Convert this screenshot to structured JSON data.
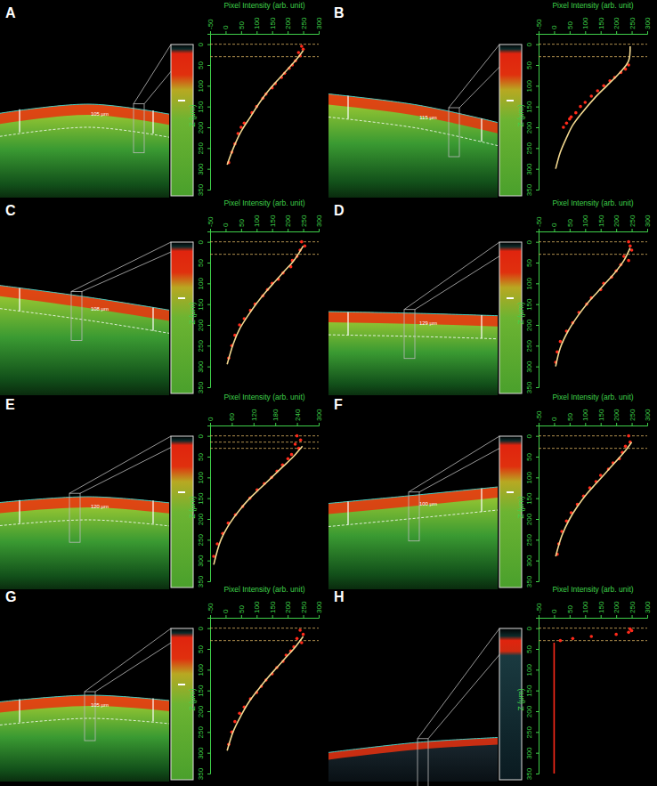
{
  "chart_data": [
    {
      "type": "scatter",
      "title": "A",
      "image_annotation": "105 µm",
      "x_label": "Pixel Intensity (arb. unit)",
      "y_label": "Z (μm)",
      "xlim": [
        -50,
        300
      ],
      "xticks": [
        -50,
        0,
        50,
        100,
        150,
        200,
        250,
        300
      ],
      "ylim": [
        -25,
        350
      ],
      "yticks": [
        0,
        50,
        100,
        150,
        200,
        250,
        300,
        350
      ],
      "reference_lines": [
        0,
        30
      ],
      "series": [
        {
          "type": "scatter",
          "color": "#ff2a1a",
          "marker": "circle",
          "x": [
            245,
            250,
            235,
            240,
            225,
            215,
            205,
            190,
            180,
            160,
            150,
            130,
            120,
            100,
            85,
            60,
            50,
            40,
            30,
            20,
            10
          ],
          "values": [
            5,
            12,
            20,
            28,
            40,
            50,
            58,
            70,
            80,
            95,
            105,
            120,
            130,
            150,
            165,
            190,
            200,
            215,
            240,
            260,
            285
          ]
        },
        {
          "type": "line",
          "color": "#f2d890",
          "line_style": "solid",
          "x": [
            250,
            230,
            200,
            170,
            140,
            110,
            80,
            50,
            25,
            5
          ],
          "values": [
            15,
            35,
            60,
            85,
            110,
            140,
            175,
            210,
            250,
            290
          ]
        }
      ]
    },
    {
      "type": "scatter",
      "title": "B",
      "image_annotation": "115 µm",
      "x_label": "Pixel Intensity (arb. unit)",
      "y_label": "Z (μm)",
      "xlim": [
        -50,
        300
      ],
      "xticks": [
        -50,
        0,
        50,
        100,
        150,
        200,
        250,
        300
      ],
      "ylim": [
        -25,
        350
      ],
      "yticks": [
        0,
        50,
        100,
        150,
        200,
        250,
        300,
        350
      ],
      "reference_lines": [
        0,
        30
      ],
      "series": [
        {
          "type": "scatter",
          "color": "#ff2a1a",
          "marker": "circle",
          "x": [
            240,
            230,
            215,
            195,
            180,
            160,
            140,
            120,
            100,
            85,
            70,
            55,
            50,
            40,
            30
          ],
          "values": [
            50,
            60,
            68,
            80,
            88,
            100,
            112,
            125,
            140,
            150,
            165,
            175,
            180,
            190,
            200
          ]
        },
        {
          "type": "line",
          "color": "#f2d890",
          "line_style": "solid",
          "x": [
            245,
            240,
            210,
            170,
            130,
            90,
            60,
            40,
            20,
            5
          ],
          "values": [
            5,
            40,
            70,
            100,
            130,
            165,
            195,
            225,
            260,
            300
          ]
        }
      ]
    },
    {
      "type": "scatter",
      "title": "C",
      "image_annotation": "108 µm",
      "x_label": "Pixel Intensity (arb. unit)",
      "y_label": "Z (μm)",
      "xlim": [
        -50,
        300
      ],
      "xticks": [
        -50,
        0,
        50,
        100,
        150,
        200,
        250,
        300
      ],
      "ylim": [
        -25,
        350
      ],
      "yticks": [
        0,
        50,
        100,
        150,
        200,
        250,
        300,
        350
      ],
      "reference_lines": [
        0,
        30
      ],
      "series": [
        {
          "type": "scatter",
          "color": "#ff2a1a",
          "marker": "circle",
          "x": [
            245,
            255,
            240,
            230,
            215,
            210,
            185,
            170,
            150,
            135,
            120,
            95,
            80,
            60,
            45,
            30,
            20,
            10
          ],
          "values": [
            0,
            10,
            20,
            35,
            45,
            60,
            75,
            90,
            100,
            115,
            130,
            150,
            165,
            185,
            200,
            225,
            250,
            280
          ]
        },
        {
          "type": "line",
          "color": "#f2d890",
          "line_style": "solid",
          "x": [
            250,
            220,
            190,
            160,
            130,
            100,
            70,
            45,
            25,
            5
          ],
          "values": [
            10,
            45,
            70,
            95,
            120,
            148,
            180,
            210,
            245,
            295
          ]
        }
      ]
    },
    {
      "type": "scatter",
      "title": "D",
      "image_annotation": "129 µm",
      "x_label": "Pixel Intensity (arb. unit)",
      "y_label": "Z (μm)",
      "xlim": [
        -50,
        300
      ],
      "xticks": [
        -50,
        0,
        50,
        100,
        150,
        200,
        250,
        300
      ],
      "ylim": [
        -25,
        350
      ],
      "yticks": [
        0,
        50,
        100,
        150,
        200,
        250,
        300,
        350
      ],
      "reference_lines": [
        0,
        30
      ],
      "series": [
        {
          "type": "scatter",
          "color": "#ff2a1a",
          "marker": "circle",
          "x": [
            240,
            245,
            250,
            225,
            240,
            215,
            200,
            185,
            160,
            150,
            120,
            105,
            80,
            60,
            40,
            20,
            10,
            5
          ],
          "values": [
            0,
            10,
            20,
            35,
            45,
            55,
            70,
            85,
            100,
            115,
            135,
            150,
            170,
            195,
            215,
            240,
            265,
            290
          ]
        },
        {
          "type": "line",
          "color": "#f2d890",
          "line_style": "solid",
          "x": [
            245,
            225,
            195,
            165,
            135,
            105,
            75,
            45,
            20,
            5
          ],
          "values": [
            15,
            45,
            75,
            100,
            125,
            150,
            180,
            215,
            255,
            300
          ]
        }
      ]
    },
    {
      "type": "scatter",
      "title": "E",
      "image_annotation": "120 µm",
      "x_label": "Pixel Intensity (arb. unit)",
      "y_label": "Z (μm)",
      "xlim": [
        0,
        300
      ],
      "xticks": [
        0,
        60,
        120,
        180,
        240,
        300
      ],
      "ylim": [
        -25,
        350
      ],
      "yticks": [
        0,
        50,
        100,
        150,
        200,
        250,
        300,
        350
      ],
      "reference_lines": [
        0,
        15,
        30
      ],
      "series": [
        {
          "type": "scatter",
          "color": "#ff2a1a",
          "marker": "circle",
          "x": [
            240,
            250,
            235,
            245,
            225,
            215,
            200,
            185,
            170,
            150,
            130,
            110,
            90,
            70,
            50,
            35,
            20,
            10
          ],
          "values": [
            0,
            10,
            20,
            30,
            45,
            55,
            70,
            85,
            100,
            115,
            130,
            150,
            170,
            190,
            210,
            235,
            260,
            290
          ]
        },
        {
          "type": "line",
          "color": "#f2d890",
          "line_style": "solid",
          "x": [
            255,
            230,
            200,
            170,
            140,
            110,
            80,
            55,
            30,
            10
          ],
          "values": [
            25,
            50,
            75,
            100,
            125,
            150,
            180,
            210,
            250,
            310
          ]
        }
      ]
    },
    {
      "type": "scatter",
      "title": "F",
      "image_annotation": "100 µm",
      "x_label": "Pixel Intensity (arb. unit)",
      "y_label": "Z (μm)",
      "xlim": [
        -50,
        300
      ],
      "xticks": [
        -50,
        0,
        50,
        100,
        150,
        200,
        250,
        300
      ],
      "ylim": [
        -25,
        350
      ],
      "yticks": [
        0,
        50,
        100,
        150,
        200,
        250,
        300,
        350
      ],
      "reference_lines": [
        0,
        30
      ],
      "series": [
        {
          "type": "scatter",
          "color": "#ff2a1a",
          "marker": "circle",
          "x": [
            240,
            245,
            230,
            220,
            210,
            190,
            175,
            150,
            135,
            115,
            95,
            75,
            55,
            40,
            25,
            15,
            10
          ],
          "values": [
            0,
            15,
            25,
            40,
            55,
            65,
            80,
            95,
            110,
            125,
            145,
            165,
            185,
            205,
            230,
            260,
            285
          ]
        },
        {
          "type": "line",
          "color": "#f2d890",
          "line_style": "solid",
          "x": [
            250,
            225,
            195,
            165,
            135,
            105,
            75,
            50,
            25,
            5
          ],
          "values": [
            15,
            40,
            65,
            90,
            115,
            140,
            170,
            200,
            240,
            290
          ]
        }
      ]
    },
    {
      "type": "scatter",
      "title": "G",
      "image_annotation": "105 µm",
      "x_label": "Pixel Intensity (arb. unit)",
      "y_label": "Z (μm)",
      "xlim": [
        -50,
        300
      ],
      "xticks": [
        -50,
        0,
        50,
        100,
        150,
        200,
        250,
        300
      ],
      "ylim": [
        -25,
        350
      ],
      "yticks": [
        0,
        50,
        100,
        150,
        200,
        250,
        300,
        350
      ],
      "reference_lines": [
        0,
        30
      ],
      "series": [
        {
          "type": "scatter",
          "color": "#ff2a1a",
          "marker": "circle",
          "x": [
            240,
            250,
            230,
            245,
            220,
            210,
            195,
            185,
            165,
            150,
            130,
            115,
            100,
            80,
            60,
            45,
            30,
            20,
            10
          ],
          "values": [
            5,
            15,
            25,
            35,
            45,
            55,
            65,
            80,
            95,
            110,
            125,
            140,
            155,
            170,
            190,
            205,
            225,
            250,
            280
          ]
        },
        {
          "type": "line",
          "color": "#f2d890",
          "line_style": "solid",
          "x": [
            250,
            225,
            195,
            165,
            135,
            105,
            75,
            50,
            25,
            5
          ],
          "values": [
            20,
            45,
            70,
            95,
            120,
            148,
            178,
            210,
            248,
            295
          ]
        }
      ]
    },
    {
      "type": "scatter",
      "title": "H",
      "x_label": "Pixel Intensity (arb. unit)",
      "y_label": "Z (μm)",
      "xlim": [
        -50,
        300
      ],
      "xticks": [
        -50,
        0,
        50,
        100,
        150,
        200,
        250,
        300
      ],
      "ylim": [
        -25,
        350
      ],
      "yticks": [
        0,
        50,
        100,
        150,
        200,
        250,
        300,
        350
      ],
      "reference_lines": [
        0,
        30
      ],
      "series": [
        {
          "type": "scatter",
          "color": "#ff2a1a",
          "marker": "circle",
          "x": [
            245,
            250,
            240,
            200,
            120,
            60,
            20
          ],
          "values": [
            2,
            6,
            10,
            15,
            20,
            25,
            30
          ]
        },
        {
          "type": "line",
          "color": "#ff2a1a",
          "line_style": "solid",
          "x": [
            0,
            0
          ],
          "values": [
            35,
            350
          ]
        }
      ]
    }
  ]
}
